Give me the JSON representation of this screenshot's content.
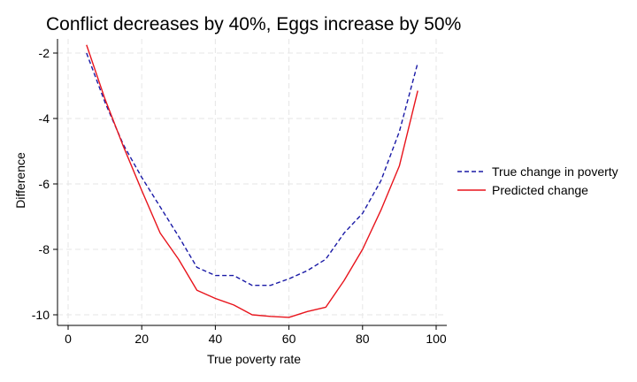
{
  "chart_data": {
    "type": "line",
    "title": "Conflict decreases by 40%, Eggs increase by 50%",
    "xlabel": "True poverty rate",
    "ylabel": "Difference",
    "xlim": [
      0,
      100
    ],
    "ylim": [
      -10.3,
      -1.7
    ],
    "xticks": [
      0,
      20,
      40,
      60,
      80,
      100
    ],
    "yticks": [
      -2,
      -4,
      -6,
      -8,
      -10
    ],
    "xtick_labels": [
      "0",
      "20",
      "40",
      "60",
      "80",
      "100"
    ],
    "ytick_labels": [
      "-2",
      "-4",
      "-6",
      "-8",
      "-10"
    ],
    "grid": true,
    "legend_position": "right",
    "series": [
      {
        "name": "True change in poverty",
        "color": "#1a1aa6",
        "style": "dashed",
        "x": [
          5,
          10,
          15,
          20,
          25,
          30,
          35,
          40,
          45,
          50,
          55,
          60,
          65,
          70,
          75,
          80,
          85,
          90,
          95
        ],
        "y": [
          -2.0,
          -3.5,
          -4.8,
          -5.8,
          -6.7,
          -7.6,
          -8.55,
          -8.8,
          -8.8,
          -9.1,
          -9.1,
          -8.9,
          -8.65,
          -8.3,
          -7.5,
          -6.9,
          -5.9,
          -4.4,
          -2.3
        ]
      },
      {
        "name": "Predicted change",
        "color": "#e8141c",
        "style": "solid",
        "x": [
          5,
          10,
          15,
          20,
          25,
          30,
          35,
          40,
          45,
          50,
          55,
          60,
          65,
          70,
          75,
          80,
          85,
          90,
          95
        ],
        "y": [
          -1.75,
          -3.4,
          -4.85,
          -6.2,
          -7.5,
          -8.3,
          -9.25,
          -9.5,
          -9.7,
          -10.0,
          -10.05,
          -10.08,
          -9.9,
          -9.77,
          -8.95,
          -8.0,
          -6.8,
          -5.45,
          -3.15
        ]
      }
    ]
  }
}
